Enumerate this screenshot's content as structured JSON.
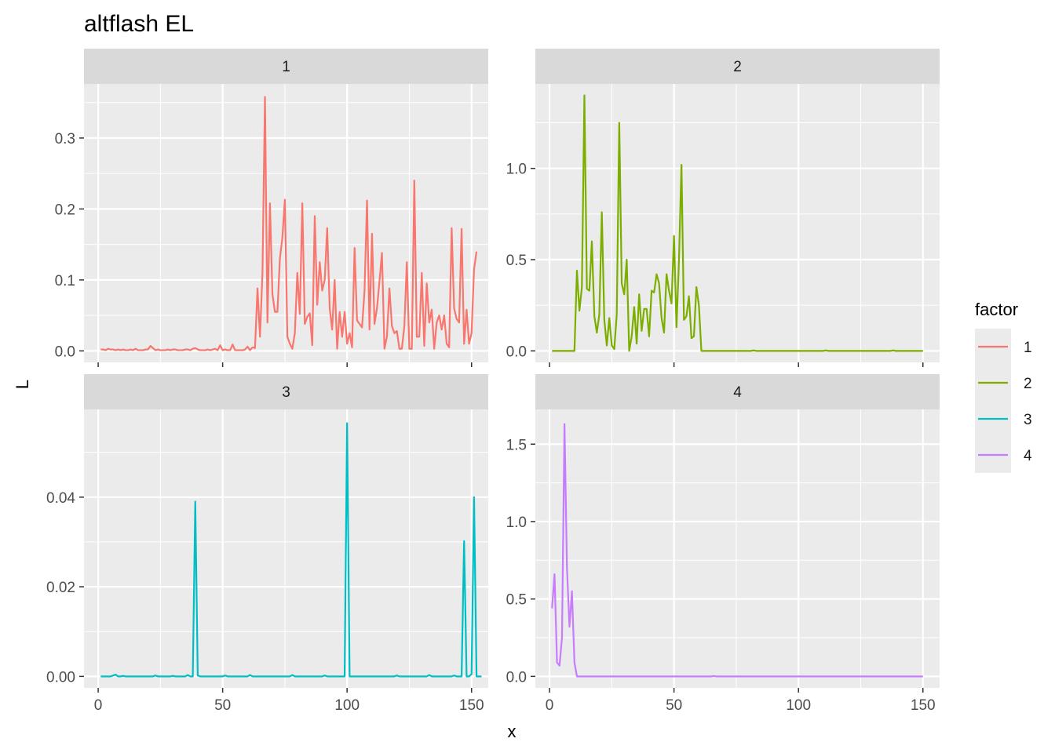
{
  "chart_data": {
    "type": "line",
    "title": "altflash EL",
    "xlabel": "x",
    "ylabel": "L",
    "legend": {
      "title": "factor",
      "placement": "right",
      "entries": [
        "1",
        "2",
        "3",
        "4"
      ]
    },
    "grid": true,
    "xlim": [
      1,
      150
    ],
    "x_ticks": [
      0,
      50,
      100,
      150
    ],
    "facets": [
      {
        "label": "1",
        "color": "#F8766D",
        "ylim": [
          0,
          0.36
        ],
        "y_ticks": [
          0.0,
          0.1,
          0.2,
          0.3
        ],
        "y_tick_labels": [
          "0.0",
          "0.1",
          "0.2",
          "0.3"
        ],
        "values": [
          0.002,
          0.002,
          0.001,
          0.003,
          0.002,
          0.002,
          0.001,
          0.002,
          0.001,
          0.002,
          0.001,
          0.001,
          0.002,
          0.001,
          0.003,
          0.001,
          0.001,
          0.001,
          0.002,
          0.002,
          0.007,
          0.004,
          0.001,
          0.002,
          0.001,
          0.001,
          0.001,
          0.002,
          0.001,
          0.002,
          0.002,
          0.001,
          0.001,
          0.001,
          0.002,
          0.002,
          0.001,
          0.003,
          0.004,
          0.002,
          0.001,
          0.001,
          0.001,
          0.002,
          0.001,
          0.002,
          0.003,
          0.001,
          0.008,
          0.001,
          0.002,
          0.001,
          0.001,
          0.009,
          0.001,
          0.001,
          0.001,
          0.001,
          0.002,
          0.006,
          0.001,
          0.005,
          0.004,
          0.088,
          0.02,
          0.11,
          0.358,
          0.04,
          0.208,
          0.08,
          0.055,
          0.055,
          0.13,
          0.16,
          0.213,
          0.02,
          0.01,
          0.003,
          0.025,
          0.11,
          0.052,
          0.208,
          0.038,
          0.048,
          0.053,
          0.008,
          0.19,
          0.065,
          0.125,
          0.085,
          0.1,
          0.173,
          0.06,
          0.03,
          0.1,
          0.003,
          0.055,
          0.02,
          0.055,
          0.01,
          0.025,
          0.005,
          0.145,
          0.043,
          0.038,
          0.033,
          0.085,
          0.212,
          0.03,
          0.165,
          0.038,
          0.06,
          0.098,
          0.138,
          0.003,
          0.02,
          0.088,
          0.035,
          0.025,
          0.028,
          0.003,
          0.003,
          0.035,
          0.125,
          0.003,
          0.003,
          0.24,
          0.02,
          0.02,
          0.11,
          0.007,
          0.095,
          0.04,
          0.058,
          0.003,
          0.04,
          0.05,
          0.03,
          0.05,
          0.01,
          0.005,
          0.173,
          0.06,
          0.045,
          0.04,
          0.172,
          0.01,
          0.058,
          0.01,
          0.025,
          0.115,
          0.14
        ]
      },
      {
        "label": "2",
        "color": "#7CAE00",
        "ylim": [
          0,
          1.4
        ],
        "y_ticks": [
          0.0,
          0.5,
          1.0
        ],
        "y_tick_labels": [
          "0.0",
          "0.5",
          "1.0"
        ],
        "values": [
          0.0,
          0.0,
          0.0,
          0.0,
          0.0,
          0.0,
          0.0,
          0.0,
          0.0,
          0.0,
          0.44,
          0.22,
          0.35,
          1.4,
          0.34,
          0.33,
          0.6,
          0.19,
          0.1,
          0.2,
          0.76,
          0.17,
          0.03,
          0.18,
          0.03,
          0.01,
          0.2,
          1.25,
          0.37,
          0.31,
          0.5,
          0.0,
          0.08,
          0.24,
          0.04,
          0.31,
          0.11,
          0.23,
          0.23,
          0.08,
          0.33,
          0.32,
          0.42,
          0.37,
          0.18,
          0.1,
          0.42,
          0.33,
          0.26,
          0.63,
          0.13,
          0.5,
          1.02,
          0.17,
          0.19,
          0.3,
          0.07,
          0.08,
          0.35,
          0.25,
          0.0,
          0.0,
          0.0,
          0.0,
          0.0,
          0.0,
          0.0,
          0.0,
          0.0,
          0.0,
          0.0,
          0.0,
          0.0,
          0.0,
          0.0,
          0.0,
          0.0,
          0.0,
          0.0,
          0.0,
          0.0,
          0.003,
          0.0,
          0.0,
          0.0,
          0.0,
          0.0,
          0.0,
          0.0,
          0.0,
          0.0,
          0.0,
          0.0,
          0.0,
          0.0,
          0.0,
          0.0,
          0.0,
          0.0,
          0.0,
          0.0,
          0.0,
          0.0,
          0.0,
          0.0,
          0.0,
          0.0,
          0.0,
          0.0,
          0.0,
          0.003,
          0.0,
          0.0,
          0.0,
          0.0,
          0.0,
          0.0,
          0.0,
          0.0,
          0.0,
          0.0,
          0.0,
          0.0,
          0.0,
          0.0,
          0.0,
          0.0,
          0.0,
          0.0,
          0.0,
          0.0,
          0.0,
          0.0,
          0.0,
          0.0,
          0.0,
          0.0,
          0.003,
          0.0,
          0.0,
          0.0,
          0.0,
          0.0,
          0.0,
          0.0,
          0.0,
          0.0,
          0.0,
          0.0,
          0.0
        ]
      },
      {
        "label": "3",
        "color": "#00BFC4",
        "ylim": [
          0,
          0.057
        ],
        "y_ticks": [
          0.0,
          0.02,
          0.04
        ],
        "y_tick_labels": [
          "0.00",
          "0.02",
          "0.04"
        ],
        "values": [
          0.0,
          0.0,
          0.0,
          0.0,
          0.0,
          0.0002,
          0.0004,
          0.0,
          0.0,
          0.0001,
          0.0,
          0.0,
          0.0,
          0.0,
          0.0,
          0.0,
          0.0,
          0.0,
          0.0,
          0.0,
          0.0,
          0.0,
          0.0002,
          0.0,
          0.0,
          0.0,
          0.0,
          0.0,
          0.0,
          0.0001,
          0.0,
          0.0,
          0.0,
          0.0,
          0.0,
          0.0003,
          0.0,
          0.0,
          0.039,
          0.0002,
          0.0,
          0.0,
          0.0,
          0.0,
          0.0,
          0.0,
          0.0,
          0.0,
          0.0,
          0.0,
          0.0002,
          0.0,
          0.0,
          0.0,
          0.0,
          0.0,
          0.0,
          0.0,
          0.0,
          0.0,
          0.0003,
          0.0,
          0.0,
          0.0,
          0.0,
          0.0,
          0.0,
          0.0,
          0.0,
          0.0,
          0.0,
          0.0,
          0.0,
          0.0,
          0.0,
          0.0,
          0.0,
          0.0003,
          0.0,
          0.0,
          0.0,
          0.0,
          0.0,
          0.0,
          0.0,
          0.0,
          0.0,
          0.0,
          0.0,
          0.0,
          0.0002,
          0.0,
          0.0,
          0.0,
          0.0,
          0.0,
          0.0,
          0.0,
          0.0,
          0.0565,
          0.0,
          0.0,
          0.0,
          0.0,
          0.0,
          0.0,
          0.0,
          0.0,
          0.0,
          0.0,
          0.0,
          0.0,
          0.0,
          0.0,
          0.0,
          0.0,
          0.0,
          0.0,
          0.0,
          0.0002,
          0.0,
          0.0,
          0.0,
          0.0,
          0.0,
          0.0,
          0.0,
          0.0,
          0.0,
          0.0,
          0.0,
          0.0,
          0.0003,
          0.0,
          0.0,
          0.0,
          0.0,
          0.0,
          0.0,
          0.0,
          0.0,
          0.0,
          0.0002,
          0.0,
          0.0,
          0.0,
          0.0302,
          0.0,
          0.0,
          0.0005,
          0.04,
          0.0,
          0.0,
          0.0
        ]
      },
      {
        "label": "4",
        "color": "#C77CFF",
        "ylim": [
          0,
          1.65
        ],
        "y_ticks": [
          0.0,
          0.5,
          1.0,
          1.5
        ],
        "y_tick_labels": [
          "0.0",
          "0.5",
          "1.0",
          "1.5"
        ],
        "values": [
          0.44,
          0.66,
          0.09,
          0.07,
          0.25,
          1.63,
          0.7,
          0.32,
          0.55,
          0.09,
          0.0,
          0.0,
          0.0,
          0.0,
          0.0,
          0.0,
          0.0,
          0.0,
          0.0,
          0.0,
          0.0,
          0.0,
          0.0,
          0.0,
          0.0,
          0.0,
          0.0,
          0.0,
          0.0,
          0.0,
          0.0,
          0.0,
          0.0,
          0.0,
          0.0,
          0.0,
          0.0,
          0.0,
          0.0,
          0.0,
          0.0,
          0.0,
          0.0,
          0.0,
          0.0,
          0.0,
          0.0,
          0.0,
          0.0,
          0.0,
          0.0,
          0.0,
          0.0,
          0.0,
          0.0,
          0.0,
          0.0,
          0.0,
          0.0,
          0.0,
          0.0,
          0.0,
          0.0,
          0.0,
          0.0,
          0.002,
          0.0,
          0.0,
          0.0,
          0.0,
          0.0,
          0.0,
          0.0,
          0.0,
          0.0,
          0.0,
          0.0,
          0.0,
          0.0,
          0.0,
          0.0,
          0.0,
          0.0,
          0.0,
          0.0,
          0.0,
          0.0,
          0.0,
          0.0,
          0.0,
          0.0,
          0.0,
          0.0,
          0.0,
          0.0,
          0.0,
          0.0,
          0.0,
          0.0,
          0.0,
          0.0,
          0.0,
          0.0,
          0.0,
          0.0,
          0.0,
          0.0,
          0.0,
          0.0,
          0.0,
          0.0,
          0.0,
          0.0,
          0.0,
          0.0,
          0.0,
          0.0,
          0.0,
          0.0,
          0.0,
          0.0,
          0.0,
          0.0,
          0.0,
          0.0,
          0.0,
          0.0,
          0.0,
          0.0,
          0.0,
          0.0,
          0.0,
          0.0,
          0.0,
          0.0,
          0.0,
          0.0,
          0.0,
          0.0,
          0.0,
          0.0,
          0.0,
          0.0,
          0.0,
          0.0,
          0.0,
          0.0,
          0.0,
          0.0,
          0.0
        ]
      }
    ]
  }
}
